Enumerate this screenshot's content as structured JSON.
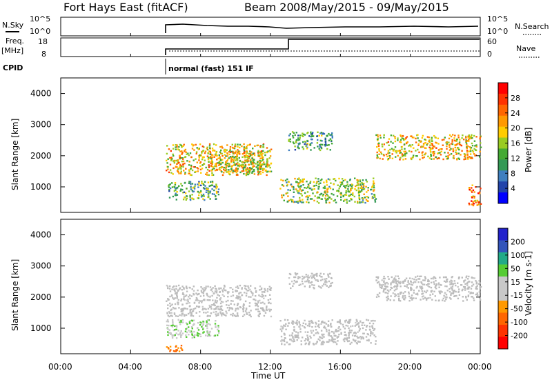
{
  "header": {
    "station": "Fort Hays East (fitACF)",
    "beam_label": "Beam 20",
    "date_range": "08/May/2015 - 09/May/2015"
  },
  "param_panels": {
    "nsky": {
      "label": "N.Sky",
      "ticks": [
        "10^5",
        "10^0"
      ]
    },
    "nsearch": {
      "label": "N.Search",
      "ticks": [
        "10^5",
        "10^0"
      ]
    },
    "freq": {
      "label_line1": "Freq.",
      "label_line2": "[MHz]",
      "ticks": [
        "18",
        "8"
      ]
    },
    "nave": {
      "label": "Nave",
      "ticks": [
        "60",
        "0"
      ]
    },
    "cpid": {
      "label": "CPID",
      "mode_text": "normal (fast) 151 IF"
    }
  },
  "colors": {
    "power_scale": [
      "#0000ff",
      "#2244aa",
      "#3f7fbf",
      "#339955",
      "#44aa33",
      "#99cc22",
      "#ffcc00",
      "#ff9900",
      "#ff6600",
      "#ff3300",
      "#ff0000"
    ],
    "velocity_scale": [
      "#2222cc",
      "#3355bb",
      "#22aa88",
      "#55cc33",
      "#c8c8c8",
      "#c8c8c8",
      "#ff9900",
      "#ff6600",
      "#ff3300",
      "#ff0000"
    ],
    "ground_scatter": "#bcbcbc"
  },
  "chart_data": [
    {
      "type": "heatmap",
      "name": "power",
      "ylabel": "Slant Range [km]",
      "y_ticks": [
        "1000",
        "2000",
        "3000",
        "4000"
      ],
      "ylim_km": [
        180,
        4500
      ],
      "colorbar_label": "Power [dB]",
      "colorbar_ticks": [
        "4",
        "8",
        "12",
        "16",
        "20",
        "24",
        "28"
      ],
      "colorbar_range": [
        0,
        30
      ],
      "grid": false,
      "echo_bands": [
        {
          "t_start": 6.0,
          "t_end": 12.0,
          "range_start_km": 1400,
          "range_end_km": 2400,
          "power_db": 18
        },
        {
          "t_start": 8.5,
          "t_end": 12.0,
          "range_start_km": 1500,
          "range_end_km": 2200,
          "power_db": 16
        },
        {
          "t_start": 6.0,
          "t_end": 9.0,
          "range_start_km": 600,
          "range_end_km": 1200,
          "power_db": 12
        },
        {
          "t_start": 12.5,
          "t_end": 18.0,
          "range_start_km": 500,
          "range_end_km": 1300,
          "power_db": 14
        },
        {
          "t_start": 13.0,
          "t_end": 15.5,
          "range_start_km": 2200,
          "range_end_km": 2800,
          "power_db": 10
        },
        {
          "t_start": 18.0,
          "t_end": 24.0,
          "range_start_km": 1900,
          "range_end_km": 2700,
          "power_db": 18
        },
        {
          "t_start": 23.3,
          "t_end": 24.0,
          "range_start_km": 400,
          "range_end_km": 1100,
          "power_db": 22
        }
      ]
    },
    {
      "type": "heatmap",
      "name": "velocity",
      "ylabel": "Slant Range [km]",
      "y_ticks": [
        "1000",
        "2000",
        "3000",
        "4000"
      ],
      "ylim_km": [
        180,
        4500
      ],
      "colorbar_label": "Velocity [m s-1]",
      "colorbar_ticks": [
        "200",
        "100",
        "50",
        "15",
        "-15",
        "-50",
        "-100",
        "-200"
      ],
      "colorbar_range": [
        -250,
        250
      ],
      "grid": false,
      "echo_bands": [
        {
          "t_start": 6.0,
          "t_end": 12.0,
          "range_start_km": 1400,
          "range_end_km": 2400,
          "velocity": 0
        },
        {
          "t_start": 6.0,
          "t_end": 9.0,
          "range_start_km": 700,
          "range_end_km": 1300,
          "velocity": 40
        },
        {
          "t_start": 12.5,
          "t_end": 18.0,
          "range_start_km": 500,
          "range_end_km": 1300,
          "velocity": 0
        },
        {
          "t_start": 13.0,
          "t_end": 15.5,
          "range_start_km": 2300,
          "range_end_km": 2800,
          "velocity": 0
        },
        {
          "t_start": 18.0,
          "t_end": 24.0,
          "range_start_km": 1900,
          "range_end_km": 2700,
          "velocity": 0
        },
        {
          "t_start": 6.0,
          "t_end": 7.0,
          "range_start_km": 250,
          "range_end_km": 500,
          "velocity": -120
        }
      ]
    }
  ],
  "time_axis": {
    "xlabel": "Time UT",
    "ticks": [
      "00:00",
      "04:00",
      "08:00",
      "12:00",
      "16:00",
      "20:00",
      "00:00"
    ],
    "tick_hours": [
      0,
      4,
      8,
      12,
      16,
      20,
      24
    ]
  }
}
